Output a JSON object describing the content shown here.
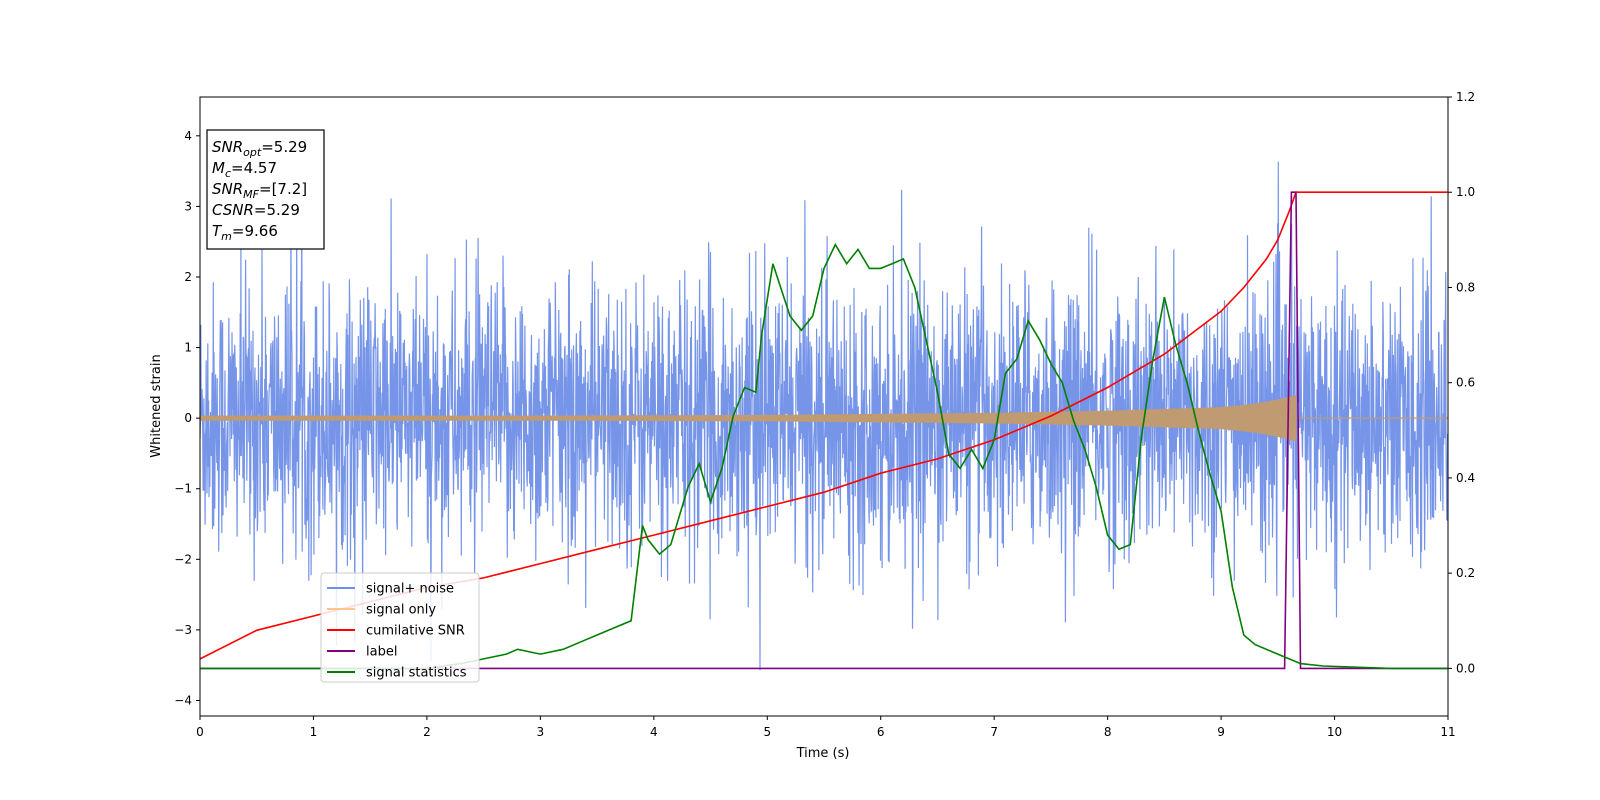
{
  "chart_data": {
    "type": "line",
    "xlabel": "Time (s)",
    "ylabel": "Whitened strain",
    "xlim": [
      0,
      11
    ],
    "ylim": [
      -4.22,
      4.55
    ],
    "y2lim": [
      -0.1,
      1.2
    ],
    "x_ticks": [
      "0",
      "1",
      "2",
      "3",
      "4",
      "5",
      "6",
      "7",
      "8",
      "9",
      "10",
      "11"
    ],
    "y_ticks": [
      "−4",
      "−3",
      "−2",
      "−1",
      "0",
      "1",
      "2",
      "3",
      "4"
    ],
    "y2_ticks": [
      "0.0",
      "0.2",
      "0.4",
      "0.6",
      "0.8",
      "1.0",
      "1.2"
    ],
    "annotation": {
      "lines": [
        {
          "base": "SNR",
          "sub": "opt",
          "value": "=5.29"
        },
        {
          "base": "M",
          "sub": "c",
          "value": "=4.57"
        },
        {
          "base": "SNR",
          "sub": "MF",
          "value": "=[7.2]"
        },
        {
          "base": "CSNR",
          "sub": "",
          "value": "=5.29"
        },
        {
          "base": "T",
          "sub": "m",
          "value": "=9.66"
        }
      ]
    },
    "legend": {
      "placement": "lower-left",
      "entries": [
        {
          "label": "signal+ noise",
          "color": "#6f8fe8"
        },
        {
          "label": "signal only",
          "color": "#ffc58a"
        },
        {
          "label": "cumilative SNR",
          "color": "#ff0000"
        },
        {
          "label": "label",
          "color": "#800080"
        },
        {
          "label": "signal statistics",
          "color": "#008000"
        }
      ]
    },
    "series": [
      {
        "name": "signal+ noise",
        "axis": "left",
        "color": "#6f8fe8",
        "kind": "noise",
        "std": 0.95,
        "x_range": [
          0,
          11
        ]
      },
      {
        "name": "signal only",
        "axis": "left",
        "color": "#c09a70",
        "kind": "chirp_envelope",
        "envelope": {
          "x": [
            0,
            3,
            5,
            7,
            8,
            9,
            9.3,
            9.5,
            9.66
          ],
          "amp": [
            0.03,
            0.03,
            0.04,
            0.07,
            0.1,
            0.15,
            0.2,
            0.26,
            0.32
          ]
        },
        "end": 9.66
      },
      {
        "name": "cumilative SNR",
        "axis": "right",
        "color": "#ff0000",
        "x": [
          0,
          0.5,
          1,
          1.5,
          2,
          2.5,
          3,
          3.5,
          4,
          4.5,
          5,
          5.5,
          6,
          6.5,
          7,
          7.5,
          8,
          8.5,
          9,
          9.2,
          9.4,
          9.5,
          9.6,
          9.66,
          10,
          11
        ],
        "y": [
          0.02,
          0.08,
          0.11,
          0.14,
          0.17,
          0.19,
          0.22,
          0.25,
          0.28,
          0.31,
          0.34,
          0.37,
          0.41,
          0.44,
          0.48,
          0.53,
          0.59,
          0.66,
          0.75,
          0.8,
          0.86,
          0.9,
          0.96,
          1.0,
          1.0,
          1.0
        ]
      },
      {
        "name": "label",
        "axis": "right",
        "color": "#800080",
        "x": [
          0,
          9.56,
          9.62,
          9.66,
          9.7,
          11
        ],
        "y": [
          0,
          0,
          1.0,
          1.0,
          0,
          0
        ]
      },
      {
        "name": "signal statistics",
        "axis": "right",
        "color": "#008000",
        "x": [
          0,
          0.5,
          1,
          1.5,
          2,
          2.3,
          2.5,
          2.7,
          2.8,
          3,
          3.2,
          3.4,
          3.6,
          3.8,
          3.9,
          3.95,
          4.05,
          4.15,
          4.3,
          4.4,
          4.5,
          4.6,
          4.7,
          4.8,
          4.9,
          4.95,
          5.05,
          5.2,
          5.3,
          5.4,
          5.5,
          5.6,
          5.7,
          5.8,
          5.9,
          6.0,
          6.1,
          6.2,
          6.3,
          6.5,
          6.6,
          6.7,
          6.8,
          6.9,
          7.0,
          7.1,
          7.2,
          7.3,
          7.4,
          7.5,
          7.6,
          7.7,
          7.8,
          7.9,
          8.0,
          8.1,
          8.2,
          8.3,
          8.4,
          8.5,
          8.6,
          8.7,
          8.8,
          8.9,
          9.0,
          9.1,
          9.2,
          9.3,
          9.5,
          9.7,
          9.9,
          10.5,
          11
        ],
        "y": [
          0,
          0.0,
          0.0,
          0.0,
          0.0,
          0.01,
          0.02,
          0.03,
          0.04,
          0.03,
          0.04,
          0.06,
          0.08,
          0.1,
          0.3,
          0.27,
          0.24,
          0.26,
          0.38,
          0.43,
          0.35,
          0.42,
          0.53,
          0.59,
          0.58,
          0.7,
          0.85,
          0.74,
          0.71,
          0.74,
          0.84,
          0.89,
          0.85,
          0.88,
          0.84,
          0.84,
          0.85,
          0.86,
          0.8,
          0.58,
          0.45,
          0.42,
          0.46,
          0.42,
          0.48,
          0.62,
          0.65,
          0.73,
          0.69,
          0.64,
          0.6,
          0.52,
          0.46,
          0.38,
          0.28,
          0.25,
          0.26,
          0.49,
          0.65,
          0.78,
          0.68,
          0.6,
          0.5,
          0.41,
          0.33,
          0.17,
          0.07,
          0.05,
          0.03,
          0.01,
          0.005,
          0.0,
          0.0
        ]
      }
    ]
  }
}
